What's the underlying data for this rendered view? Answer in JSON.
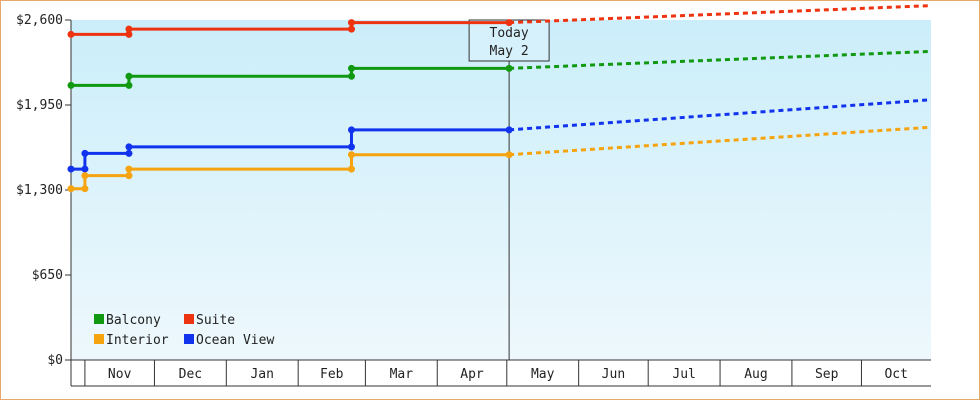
{
  "chart_data": {
    "type": "line",
    "ylim": [
      0,
      2600
    ],
    "y_ticks": [
      {
        "value": 0,
        "label": "$0"
      },
      {
        "value": 650,
        "label": "$650"
      },
      {
        "value": 1300,
        "label": "$1,300"
      },
      {
        "value": 1950,
        "label": "$1,950"
      },
      {
        "value": 2600,
        "label": "$2,600"
      }
    ],
    "x_range": [
      "2023-10-26",
      "2024-10-31"
    ],
    "months": [
      {
        "label": "Nov",
        "start": "2023-11-01"
      },
      {
        "label": "Dec",
        "start": "2023-12-01"
      },
      {
        "label": "Jan",
        "start": "2024-01-01"
      },
      {
        "label": "Feb",
        "start": "2024-02-01"
      },
      {
        "label": "Mar",
        "start": "2024-03-01"
      },
      {
        "label": "Apr",
        "start": "2024-04-01"
      },
      {
        "label": "May",
        "start": "2024-05-01"
      },
      {
        "label": "Jun",
        "start": "2024-06-01"
      },
      {
        "label": "Jul",
        "start": "2024-07-01"
      },
      {
        "label": "Aug",
        "start": "2024-08-01"
      },
      {
        "label": "Sep",
        "start": "2024-09-01"
      },
      {
        "label": "Oct",
        "start": "2024-10-01"
      }
    ],
    "today": {
      "date": "2024-05-02",
      "label_line1": "Today",
      "label_line2": "May 2"
    },
    "grid": false,
    "legend_position": "bottom-left",
    "series": [
      {
        "name": "Suite",
        "color": "#ee3311",
        "steps": [
          [
            "2023-10-26",
            2490
          ],
          [
            "2023-11-20",
            2530
          ],
          [
            "2024-02-24",
            2580
          ],
          [
            "2024-05-02",
            2580
          ]
        ],
        "forecast": [
          [
            "2024-05-02",
            2580
          ],
          [
            "2024-10-31",
            2710
          ]
        ]
      },
      {
        "name": "Balcony",
        "color": "#119911",
        "steps": [
          [
            "2023-10-26",
            2100
          ],
          [
            "2023-11-20",
            2170
          ],
          [
            "2024-02-24",
            2230
          ],
          [
            "2024-05-02",
            2230
          ]
        ],
        "forecast": [
          [
            "2024-05-02",
            2230
          ],
          [
            "2024-10-31",
            2360
          ]
        ]
      },
      {
        "name": "Ocean View",
        "color": "#1133ee",
        "steps": [
          [
            "2023-10-26",
            1460
          ],
          [
            "2023-11-01",
            1580
          ],
          [
            "2023-11-20",
            1630
          ],
          [
            "2024-02-24",
            1760
          ],
          [
            "2024-05-02",
            1760
          ]
        ],
        "forecast": [
          [
            "2024-05-02",
            1760
          ],
          [
            "2024-10-31",
            1990
          ]
        ]
      },
      {
        "name": "Interior",
        "color": "#f5a30f",
        "steps": [
          [
            "2023-10-26",
            1310
          ],
          [
            "2023-11-01",
            1410
          ],
          [
            "2023-11-20",
            1460
          ],
          [
            "2024-02-24",
            1570
          ],
          [
            "2024-05-02",
            1570
          ]
        ],
        "forecast": [
          [
            "2024-05-02",
            1570
          ],
          [
            "2024-10-31",
            1780
          ]
        ]
      }
    ],
    "legend": [
      {
        "name": "Balcony",
        "color": "#119911"
      },
      {
        "name": "Suite",
        "color": "#ee3311"
      },
      {
        "name": "Interior",
        "color": "#f5a30f"
      },
      {
        "name": "Ocean View",
        "color": "#1133ee"
      }
    ]
  }
}
